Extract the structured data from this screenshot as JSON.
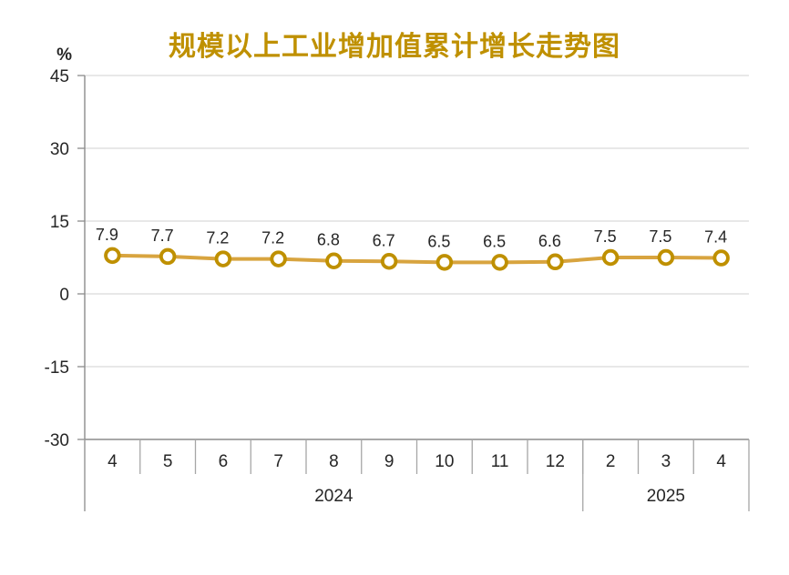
{
  "chart_data": {
    "type": "line",
    "title": "规模以上工业增加值累计增长走势图",
    "unit_label": "%",
    "categories": [
      "4",
      "5",
      "6",
      "7",
      "8",
      "9",
      "10",
      "11",
      "12",
      "2",
      "3",
      "4"
    ],
    "year_groups": [
      {
        "label": "2024",
        "span": 9
      },
      {
        "label": "2025",
        "span": 3
      }
    ],
    "values": [
      7.9,
      7.7,
      7.2,
      7.2,
      6.8,
      6.7,
      6.5,
      6.5,
      6.6,
      7.5,
      7.5,
      7.4
    ],
    "data_labels": [
      "7.9",
      "7.7",
      "7.2",
      "7.2",
      "6.8",
      "6.7",
      "6.5",
      "6.5",
      "6.6",
      "7.5",
      "7.5",
      "7.4"
    ],
    "y_ticks": [
      45,
      30,
      15,
      0,
      -15,
      -30
    ],
    "ylim": [
      -30,
      45
    ],
    "grid": true,
    "legend": "none",
    "colors": {
      "title": "#BF9000",
      "line": "#D8A43F",
      "marker_ring": "#BF9000",
      "marker_fill": "#FFFFFF",
      "grid": "#D9D9D9",
      "axis": "#8C8C8C",
      "separator": "#A6A6A6",
      "text": "#262626"
    }
  }
}
